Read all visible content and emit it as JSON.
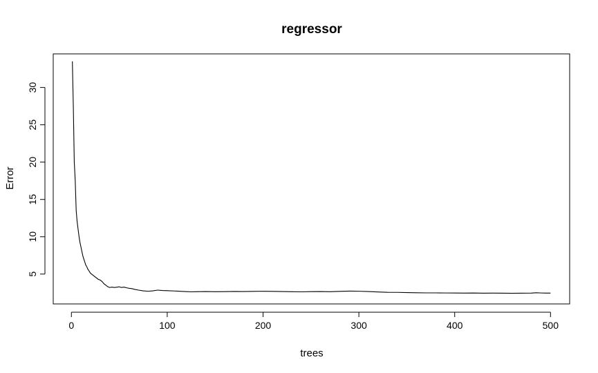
{
  "chart_data": {
    "type": "line",
    "title": "regressor",
    "xlabel": "trees",
    "ylabel": "Error",
    "xlim": [
      1,
      500
    ],
    "ylim": [
      1.0,
      34.5
    ],
    "xticks": [
      0,
      100,
      200,
      300,
      400,
      500
    ],
    "yticks": [
      5,
      10,
      15,
      20,
      25,
      30
    ],
    "grid": false,
    "colors": {
      "line": "#000000",
      "frame": "#000000",
      "background": "#ffffff"
    },
    "series": [
      {
        "x": [
          1,
          2,
          3,
          4,
          5,
          6,
          7,
          8,
          9,
          10,
          11,
          12,
          13,
          14,
          15,
          16,
          17,
          18,
          19,
          20,
          22,
          24,
          26,
          28,
          30,
          32,
          34,
          36,
          38,
          40,
          42,
          45,
          48,
          50,
          52,
          55,
          58,
          60,
          63,
          66,
          70,
          75,
          80,
          85,
          90,
          95,
          100,
          110,
          120,
          125,
          130,
          140,
          150,
          160,
          170,
          180,
          190,
          200,
          210,
          220,
          230,
          240,
          250,
          260,
          270,
          280,
          290,
          300,
          310,
          320,
          330,
          340,
          350,
          360,
          370,
          380,
          390,
          400,
          410,
          420,
          430,
          440,
          450,
          460,
          470,
          480,
          485,
          490,
          495,
          500
        ],
        "y": [
          33.5,
          27.5,
          20.0,
          17.5,
          13.5,
          12.0,
          11.0,
          10.0,
          9.2,
          8.6,
          8.0,
          7.4,
          7.0,
          6.6,
          6.2,
          6.0,
          5.7,
          5.5,
          5.3,
          5.1,
          4.9,
          4.7,
          4.5,
          4.3,
          4.2,
          4.0,
          3.7,
          3.5,
          3.3,
          3.2,
          3.25,
          3.2,
          3.25,
          3.3,
          3.2,
          3.25,
          3.15,
          3.1,
          3.05,
          2.95,
          2.85,
          2.75,
          2.7,
          2.75,
          2.85,
          2.8,
          2.78,
          2.72,
          2.65,
          2.62,
          2.64,
          2.66,
          2.64,
          2.65,
          2.67,
          2.66,
          2.68,
          2.7,
          2.68,
          2.66,
          2.64,
          2.62,
          2.65,
          2.66,
          2.64,
          2.68,
          2.72,
          2.7,
          2.66,
          2.6,
          2.56,
          2.55,
          2.52,
          2.5,
          2.48,
          2.48,
          2.47,
          2.46,
          2.45,
          2.46,
          2.44,
          2.45,
          2.44,
          2.43,
          2.44,
          2.45,
          2.5,
          2.47,
          2.45,
          2.45
        ]
      }
    ]
  }
}
